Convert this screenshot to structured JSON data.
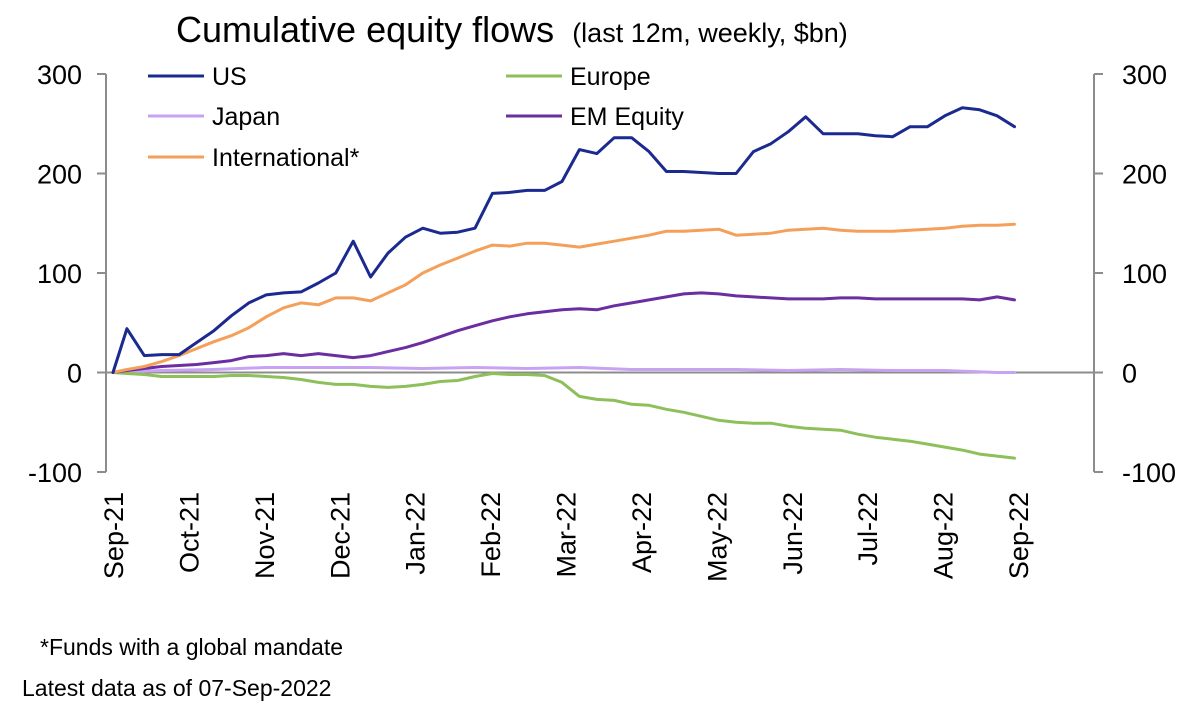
{
  "chart_data": {
    "type": "line",
    "title": "Cumulative equity flows",
    "subtitle": "(last 12m, weekly, $bn)",
    "ylim": [
      -100,
      300
    ],
    "yticks_left": [
      300,
      200,
      100,
      0,
      -100
    ],
    "yticks_right": [
      300,
      200,
      100,
      0,
      -100
    ],
    "yticks_right_labels": [
      "300",
      "200",
      "100",
      "0",
      "-100"
    ],
    "x_tick_labels": [
      "Sep-21",
      "Oct-21",
      "Nov-21",
      "Dec-21",
      "Jan-22",
      "Feb-22",
      "Mar-22",
      "Apr-22",
      "May-22",
      "Jun-22",
      "Jul-22",
      "Aug-22",
      "Sep-22"
    ],
    "x_unit": "weeks since 08-Sep-2021",
    "x_range": [
      0,
      52
    ],
    "series": [
      {
        "name": "US",
        "color": "#1b2a8f",
        "x": [
          0,
          0.8,
          1.8,
          2.8,
          3.8,
          4.8,
          5.8,
          6.8,
          7.8,
          8.8,
          9.8,
          10.8,
          11.8,
          12.8,
          13.8,
          14.8,
          15.8,
          16.8,
          17.8,
          18.8,
          19.8,
          20.8,
          21.8,
          22.8,
          23.8,
          24.8,
          25.8,
          26.8,
          27.8,
          28.8,
          29.8,
          30.8,
          31.8,
          32.8,
          33.8,
          34.8,
          35.8,
          36.8,
          37.8,
          38.8,
          39.8,
          40.8,
          41.8,
          42.8,
          43.8,
          44.8,
          45.8,
          46.8,
          47.8,
          48.8,
          49.8,
          50.8,
          51.8
        ],
        "values": [
          0,
          44,
          17,
          18,
          18,
          30,
          42,
          57,
          70,
          78,
          80,
          81,
          90,
          100,
          132,
          96,
          120,
          136,
          145,
          140,
          141,
          145,
          180,
          181,
          183,
          183,
          192,
          224,
          220,
          236,
          236,
          222,
          202,
          202,
          201,
          200,
          200,
          222,
          230,
          242,
          257,
          240,
          240,
          240,
          238,
          237,
          247,
          247,
          258,
          266,
          264,
          258,
          247
        ]
      },
      {
        "name": "Europe",
        "color": "#8dc05a",
        "x": [
          0,
          0.8,
          1.8,
          2.8,
          3.8,
          4.8,
          5.8,
          6.8,
          7.8,
          8.8,
          9.8,
          10.8,
          11.8,
          12.8,
          13.8,
          14.8,
          15.8,
          16.8,
          17.8,
          18.8,
          19.8,
          20.8,
          21.8,
          22.8,
          23.8,
          24.8,
          25.8,
          26.8,
          27.8,
          28.8,
          29.8,
          30.8,
          31.8,
          32.8,
          33.8,
          34.8,
          35.8,
          36.8,
          37.8,
          38.8,
          39.8,
          40.8,
          41.8,
          42.8,
          43.8,
          44.8,
          45.8,
          46.8,
          47.8,
          48.8,
          49.8,
          50.8,
          51.8
        ],
        "values": [
          0,
          -1,
          -2,
          -4,
          -4,
          -4,
          -4,
          -3,
          -3,
          -4,
          -5,
          -7,
          -10,
          -12,
          -12,
          -14,
          -15,
          -14,
          -12,
          -9,
          -8,
          -4,
          -1,
          -2,
          -2,
          -3,
          -10,
          -24,
          -27,
          -28,
          -32,
          -33,
          -37,
          -40,
          -44,
          -48,
          -50,
          -51,
          -51,
          -54,
          -56,
          -57,
          -58,
          -62,
          -65,
          -67,
          -69,
          -72,
          -75,
          -78,
          -82,
          -84,
          -86
        ]
      },
      {
        "name": "Japan",
        "color": "#c7a3f2",
        "x": [
          0,
          2.8,
          5.8,
          8.8,
          11.8,
          14.8,
          17.8,
          20.8,
          23.8,
          26.8,
          29.8,
          32.8,
          35.8,
          38.8,
          41.8,
          44.8,
          47.8,
          50.8,
          51.8
        ],
        "values": [
          0,
          2,
          3,
          5,
          5,
          5,
          4,
          5,
          4,
          5,
          3,
          3,
          3,
          2,
          3,
          2,
          2,
          0,
          0
        ]
      },
      {
        "name": "EM Equity",
        "color": "#6b2ea0",
        "x": [
          0,
          0.8,
          1.8,
          2.8,
          3.8,
          4.8,
          5.8,
          6.8,
          7.8,
          8.8,
          9.8,
          10.8,
          11.8,
          12.8,
          13.8,
          14.8,
          15.8,
          16.8,
          17.8,
          18.8,
          19.8,
          20.8,
          21.8,
          22.8,
          23.8,
          24.8,
          25.8,
          26.8,
          27.8,
          28.8,
          29.8,
          30.8,
          31.8,
          32.8,
          33.8,
          34.8,
          35.8,
          36.8,
          37.8,
          38.8,
          39.8,
          40.8,
          41.8,
          42.8,
          43.8,
          44.8,
          45.8,
          46.8,
          47.8,
          48.8,
          49.8,
          50.8,
          51.8
        ],
        "values": [
          0,
          2,
          4,
          6,
          7,
          8,
          10,
          12,
          16,
          17,
          19,
          17,
          19,
          17,
          15,
          17,
          21,
          25,
          30,
          36,
          42,
          47,
          52,
          56,
          59,
          61,
          63,
          64,
          63,
          67,
          70,
          73,
          76,
          79,
          80,
          79,
          77,
          76,
          75,
          74,
          74,
          74,
          75,
          75,
          74,
          74,
          74,
          74,
          74,
          74,
          73,
          76,
          73
        ]
      },
      {
        "name": "International*",
        "color": "#f5a05a",
        "x": [
          0,
          0.8,
          1.8,
          2.8,
          3.8,
          4.8,
          5.8,
          6.8,
          7.8,
          8.8,
          9.8,
          10.8,
          11.8,
          12.8,
          13.8,
          14.8,
          15.8,
          16.8,
          17.8,
          18.8,
          19.8,
          20.8,
          21.8,
          22.8,
          23.8,
          24.8,
          25.8,
          26.8,
          27.8,
          28.8,
          29.8,
          30.8,
          31.8,
          32.8,
          33.8,
          34.8,
          35.8,
          36.8,
          37.8,
          38.8,
          39.8,
          40.8,
          41.8,
          42.8,
          43.8,
          44.8,
          45.8,
          46.8,
          47.8,
          48.8,
          49.8,
          50.8,
          51.8
        ],
        "values": [
          0,
          3,
          6,
          11,
          17,
          24,
          31,
          37,
          45,
          56,
          65,
          70,
          68,
          75,
          75,
          72,
          80,
          88,
          100,
          108,
          115,
          122,
          128,
          127,
          130,
          130,
          128,
          126,
          129,
          132,
          135,
          138,
          142,
          142,
          143,
          144,
          138,
          139,
          140,
          143,
          144,
          145,
          143,
          142,
          142,
          142,
          143,
          144,
          145,
          147,
          148,
          148,
          149
        ]
      }
    ]
  },
  "legend": {
    "items": [
      {
        "label": "US",
        "color": "#1b2a8f"
      },
      {
        "label": "Europe",
        "color": "#8dc05a"
      },
      {
        "label": "Japan",
        "color": "#c7a3f2"
      },
      {
        "label": "EM Equity",
        "color": "#6b2ea0"
      },
      {
        "label": "International*",
        "color": "#f5a05a"
      }
    ]
  },
  "footnotes": {
    "mandate": "*Funds with a global mandate",
    "latest": "Latest data as of 07-Sep-2022"
  }
}
